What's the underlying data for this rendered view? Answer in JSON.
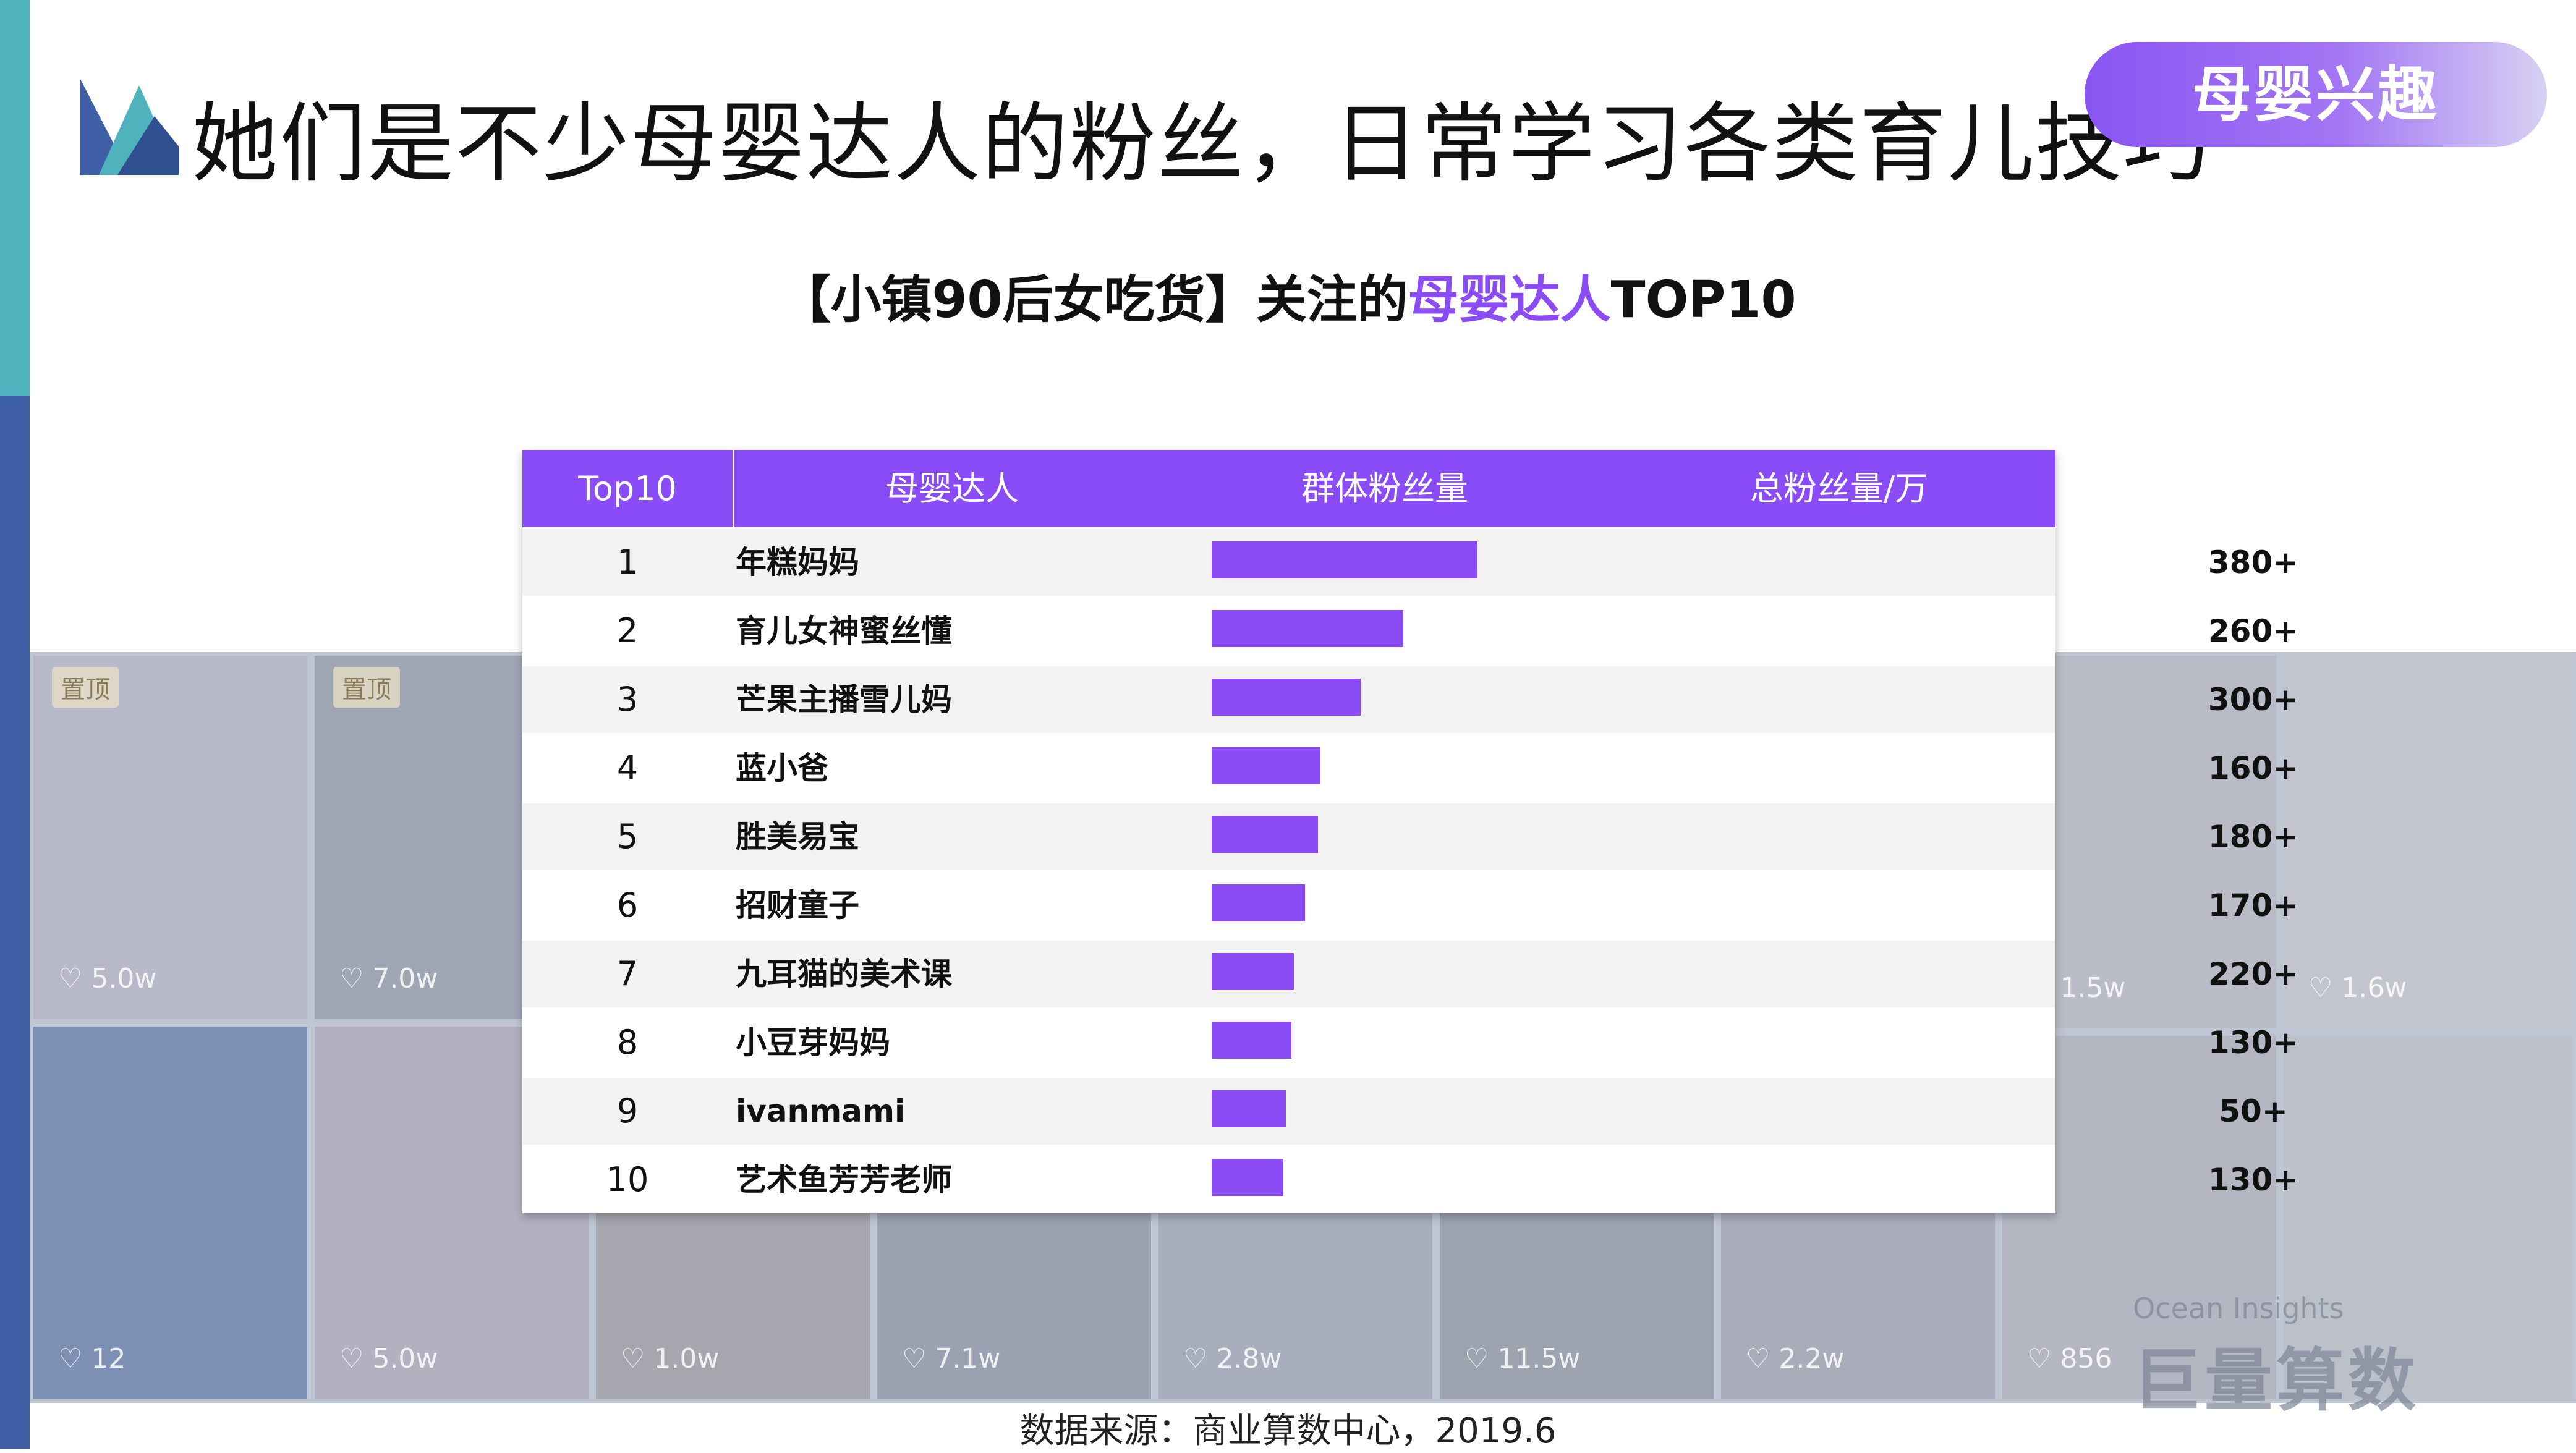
{
  "title": "她们是不少母婴达人的粉丝，日常学习各类育儿技巧",
  "tag": "母婴兴趣",
  "subtitle": {
    "prefix": "【小镇90后女吃货】关注的",
    "highlight": "母婴达人",
    "suffix": "TOP10"
  },
  "colors": {
    "accent": "#8b4cf6",
    "header_bg": "#8a4cf6",
    "stripe_teal": "#4fb3bd",
    "stripe_blue": "#3f5fa7"
  },
  "table": {
    "headers": [
      "Top10",
      "母婴达人",
      "群体粉丝量",
      "总粉丝量/万"
    ]
  },
  "chart_data": {
    "type": "table",
    "columns": [
      "Top10",
      "母婴达人",
      "群体粉丝量",
      "总粉丝量/万"
    ],
    "rows": [
      {
        "rank": "1",
        "name": "年糕妈妈",
        "group_fans_relative": 1.0,
        "total": "380+"
      },
      {
        "rank": "2",
        "name": "育儿女神蜜丝懂",
        "group_fans_relative": 0.72,
        "total": "260+"
      },
      {
        "rank": "3",
        "name": "芒果主播雪儿妈",
        "group_fans_relative": 0.56,
        "total": "300+"
      },
      {
        "rank": "4",
        "name": "蓝小爸",
        "group_fans_relative": 0.41,
        "total": "160+"
      },
      {
        "rank": "5",
        "name": "胜美易宝",
        "group_fans_relative": 0.4,
        "total": "180+"
      },
      {
        "rank": "6",
        "name": "招财童子",
        "group_fans_relative": 0.35,
        "total": "170+"
      },
      {
        "rank": "7",
        "name": "九耳猫的美术课",
        "group_fans_relative": 0.31,
        "total": "220+"
      },
      {
        "rank": "8",
        "name": "小豆芽妈妈",
        "group_fans_relative": 0.3,
        "total": "130+"
      },
      {
        "rank": "9",
        "name": "ivanmami",
        "group_fans_relative": 0.28,
        "total": "50+"
      },
      {
        "rank": "10",
        "name": "艺术鱼芳芳老师",
        "group_fans_relative": 0.27,
        "total": "130+"
      }
    ]
  },
  "background_tiles": {
    "pins": [
      "置顶",
      "置顶"
    ],
    "likes": [
      "5.0w",
      "7.0w",
      "12",
      "5.0w",
      "1.0w",
      "7.1w",
      "2.8w",
      "11.5w",
      "2.2w",
      "856",
      "1.5w",
      "1.6w"
    ]
  },
  "source": "数据来源：商业算数中心，2019.6",
  "watermark": {
    "en": "Ocean Insights",
    "cn": "巨量算数"
  }
}
